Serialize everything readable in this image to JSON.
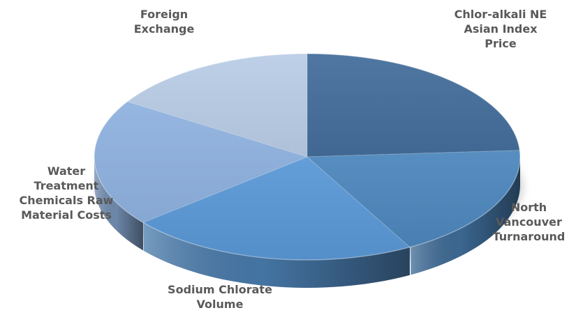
{
  "chart_data": {
    "type": "pie",
    "title": "",
    "three_d": true,
    "legend": "none",
    "slices": [
      {
        "label_lines": [
          "Chlor-alkali NE",
          "Asian Index",
          "Price"
        ],
        "value": 24,
        "color": "#446e9b"
      },
      {
        "label_lines": [
          "North",
          "Vancouver",
          "Turnaround"
        ],
        "value": 18,
        "color": "#4d87bd"
      },
      {
        "label_lines": [
          "Sodium Chlorate",
          "Volume"
        ],
        "value": 22,
        "color": "#5a98d6"
      },
      {
        "label_lines": [
          "Water",
          "Treatment",
          "Chemicals Raw",
          "Material Costs"
        ],
        "value": 20,
        "color": "#8fb2df"
      },
      {
        "label_lines": [
          "Foreign",
          "Exchange"
        ],
        "value": 16,
        "color": "#b9cde6"
      }
    ]
  }
}
